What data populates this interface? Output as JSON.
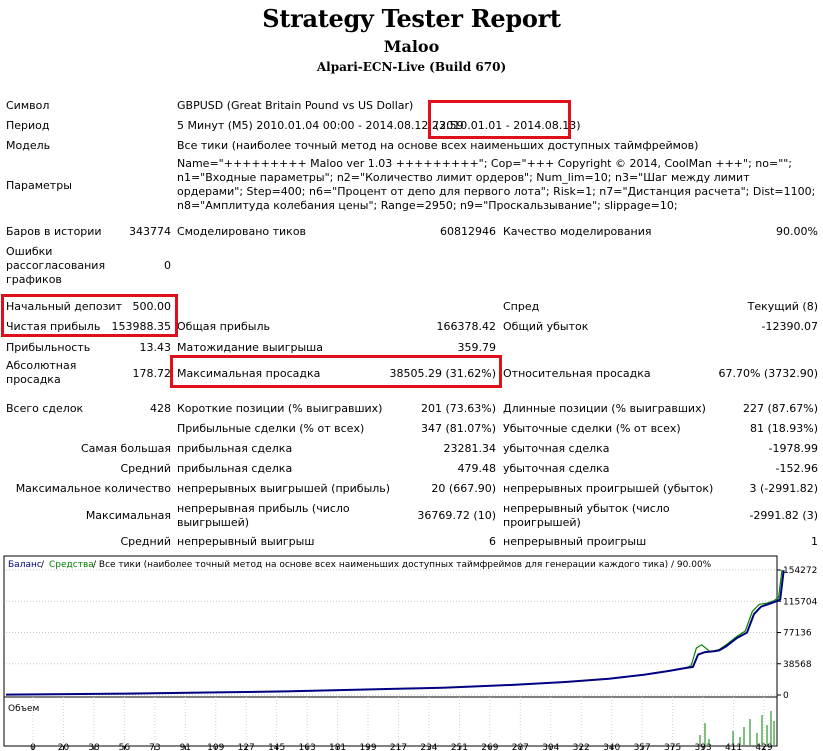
{
  "header": {
    "title": "Strategy Tester Report",
    "ea_name": "Maloo",
    "server": "Alpari-ECN-Live (Build 670)"
  },
  "info": {
    "symbol_label": "Символ",
    "symbol_value": "GBPUSD (Great Britain Pound vs US Dollar)",
    "period_label": "Период",
    "period_value": "5 Минут (M5) 2010.01.04 00:00 - 2014.08.12 23:59",
    "period_range": "(2010.01.01 - 2014.08.13)",
    "model_label": "Модель",
    "model_value": "Все тики (наиболее точный метод на основе всех наименьших доступных таймфреймов)",
    "params_label": "Параметры",
    "params_value": "Name=\"+++++++++ Maloo ver 1.03 +++++++++\"; Cop=\"+++ Copyright © 2014, CoolMan +++\"; no=\"\"; n1=\"Входные параметры\"; n2=\"Количество лимит ордеров\"; Num_lim=10; n3=\"Шаг между лимит ордерами\"; Step=400; n6=\"Процент от депо для первого лота\"; Risk=1; n7=\"Дистанция расчета\"; Dist=1100; n8=\"Амплитуда колебания цены\"; Range=2950; n9=\"Проскальзывание\"; slippage=10;"
  },
  "stats": {
    "bars_label": "Баров в истории",
    "bars_value": "343774",
    "ticks_label": "Смоделировано тиков",
    "ticks_value": "60812946",
    "quality_label": "Качество моделирования",
    "quality_value": "90.00%",
    "errors_label": "Ошибки рассогласования графиков",
    "errors_value": "0",
    "deposit_label": "Начальный депозит",
    "deposit_value": "500.00",
    "spread_label": "Спред",
    "spread_value": "Текущий (8)",
    "net_label": "Чистая прибыль",
    "net_value": "153988.35",
    "gross_profit_label": "Общая прибыль",
    "gross_profit_value": "166378.42",
    "gross_loss_label": "Общий убыток",
    "gross_loss_value": "-12390.07",
    "pf_label": "Прибыльность",
    "pf_value": "13.43",
    "expect_label": "Матожидание выигрыша",
    "expect_value": "359.79",
    "abs_dd_label": "Абсолютная просадка",
    "abs_dd_value": "178.72",
    "max_dd_label": "Максимальная просадка",
    "max_dd_value": "38505.29 (31.62%)",
    "rel_dd_label": "Относительная просадка",
    "rel_dd_value": "67.70% (3732.90)",
    "total_label": "Всего сделок",
    "total_value": "428",
    "short_label": "Короткие позиции (% выигравших)",
    "short_value": "201 (73.63%)",
    "long_label": "Длинные позиции (% выигравших)",
    "long_value": "227 (87.67%)",
    "profit_trades_label": "Прибыльные сделки (% от всех)",
    "profit_trades_value": "347 (81.07%)",
    "loss_trades_label": "Убыточные сделки (% от всех)",
    "loss_trades_value": "81 (18.93%)",
    "largest_label": "Самая большая",
    "largest_profit_label": "прибыльная сделка",
    "largest_profit_value": "23281.34",
    "largest_loss_label": "убыточная сделка",
    "largest_loss_value": "-1978.99",
    "average_label": "Средний",
    "avg_profit_label": "прибыльная сделка",
    "avg_profit_value": "479.48",
    "avg_loss_label": "убыточная сделка",
    "avg_loss_value": "-152.96",
    "max_count_label": "Максимальное количество",
    "max_cons_wins_label": "непрерывных выигрышей (прибыль)",
    "max_cons_wins_value": "20 (667.90)",
    "max_cons_losses_label": "непрерывных проигрышей (убыток)",
    "max_cons_losses_value": "3 (-2991.82)",
    "maximal_label": "Максимальная",
    "max_cons_profit_label": "непрерывная прибыль (число выигрышей)",
    "max_cons_profit_value": "36769.72 (10)",
    "max_cons_loss_label": "непрерывный убыток (число проигрышей)",
    "max_cons_loss_value": "-2991.82 (3)",
    "avg_cons_label": "Средний",
    "avg_cons_wins_label": "непрерывный выигрыш",
    "avg_cons_wins_value": "6",
    "avg_cons_losses_label": "непрерывный проигрыш",
    "avg_cons_losses_value": "1"
  },
  "chart_data": {
    "type": "line",
    "legend_balance": "Баланс",
    "legend_sep": " / ",
    "legend_equity": "Средства",
    "legend_rest": " / Все тики (наиболее точный метод на основе всех наименьших доступных таймфреймов для генерации каждого тика) / 90.00%",
    "volume_label": "Объем",
    "y_ticks": [
      "154272",
      "115704",
      "77136",
      "38568",
      "0"
    ],
    "y_tick_values": [
      154272,
      115704,
      77136,
      38568,
      0
    ],
    "ylim": [
      0,
      154272
    ],
    "x_ticks": [
      "0",
      "20",
      "38",
      "56",
      "73",
      "91",
      "109",
      "127",
      "145",
      "163",
      "181",
      "199",
      "217",
      "234",
      "251",
      "269",
      "287",
      "304",
      "322",
      "340",
      "357",
      "375",
      "393",
      "411",
      "429"
    ],
    "xlim": [
      0,
      440
    ],
    "series": [
      {
        "name": "Баланс",
        "color": "#000080",
        "points": [
          [
            0,
            500
          ],
          [
            60,
            1500
          ],
          [
            110,
            3000
          ],
          [
            160,
            4500
          ],
          [
            200,
            6500
          ],
          [
            250,
            9000
          ],
          [
            290,
            12500
          ],
          [
            320,
            16000
          ],
          [
            345,
            20000
          ],
          [
            365,
            25000
          ],
          [
            380,
            30000
          ],
          [
            388,
            33000
          ],
          [
            393,
            34500
          ],
          [
            396,
            50000
          ],
          [
            400,
            53000
          ],
          [
            405,
            54000
          ],
          [
            408,
            55000
          ],
          [
            412,
            60000
          ],
          [
            418,
            70000
          ],
          [
            424,
            77000
          ],
          [
            428,
            100000
          ],
          [
            432,
            109000
          ],
          [
            436,
            112000
          ],
          [
            440,
            115000
          ],
          [
            443,
            118000
          ],
          [
            445,
            154000
          ]
        ]
      },
      {
        "name": "Средства",
        "color": "#008000",
        "points": [
          [
            0,
            500
          ],
          [
            60,
            1500
          ],
          [
            110,
            3000
          ],
          [
            160,
            4500
          ],
          [
            200,
            6500
          ],
          [
            250,
            9000
          ],
          [
            290,
            12500
          ],
          [
            320,
            16000
          ],
          [
            345,
            20000
          ],
          [
            365,
            25000
          ],
          [
            380,
            30000
          ],
          [
            388,
            33000
          ],
          [
            392,
            36000
          ],
          [
            395,
            58000
          ],
          [
            398,
            62000
          ],
          [
            403,
            53500
          ],
          [
            408,
            56000
          ],
          [
            412,
            62000
          ],
          [
            418,
            72000
          ],
          [
            423,
            79000
          ],
          [
            427,
            103000
          ],
          [
            431,
            112000
          ],
          [
            435,
            113000
          ],
          [
            439,
            116000
          ],
          [
            442,
            120000
          ],
          [
            444,
            154272
          ]
        ]
      }
    ],
    "colors": {
      "balance": "#000080",
      "equity": "#008000",
      "volume": "#008000"
    }
  }
}
